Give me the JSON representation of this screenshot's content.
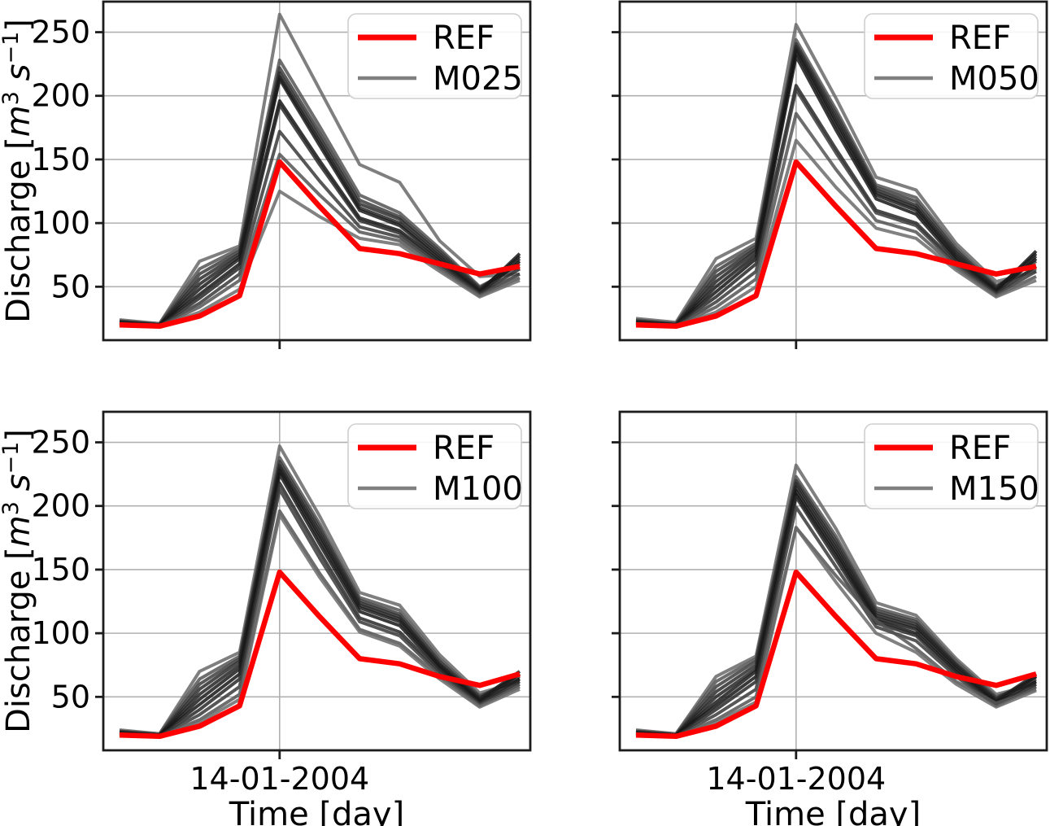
{
  "figure": {
    "background": "#ffffff",
    "colors": {
      "ref": "#ff0000",
      "member_legend": "#808080",
      "member_dark": "#161616",
      "member_light": "#6b6b6b",
      "grid": "#b0b0b0",
      "spine": "#1c1c1c",
      "legend_border": "#cfcfcf",
      "text": "#000000"
    }
  },
  "chart_data": {
    "type": "line",
    "title": "",
    "xlabel": "Time [day]",
    "ylabel": "Discharge [m³ s⁻¹]",
    "ylabel_segments": [
      {
        "text": "Discharge ["
      },
      {
        "text": "m",
        "italic": true
      },
      {
        "text": "3",
        "super": true
      },
      {
        "text": " "
      },
      {
        "text": "s",
        "italic": true
      },
      {
        "text": "−1",
        "super": true
      },
      {
        "text": "]"
      }
    ],
    "x_tick_label": "14-01-2004",
    "x_tick_index": 4,
    "n_points": 11,
    "yticks": [
      50,
      100,
      150,
      200,
      250
    ],
    "ylim": [
      8,
      274
    ],
    "grid": true,
    "legend_position": "upper right",
    "subplots": [
      {
        "name": "M025",
        "row": 0,
        "col": 0,
        "legend": [
          "REF",
          "M025"
        ],
        "ref": [
          20,
          19,
          27,
          43,
          148,
          113,
          80,
          76,
          68,
          60,
          66
        ],
        "members": [
          [
            24,
            21,
            70,
            82,
            264,
            205,
            146,
            132,
            86,
            58,
            60
          ],
          [
            23,
            21,
            64,
            80,
            228,
            176,
            122,
            108,
            80,
            50,
            66
          ],
          [
            23,
            20,
            60,
            78,
            222,
            171,
            118,
            105,
            78,
            49,
            68
          ],
          [
            22,
            20,
            56,
            76,
            218,
            167,
            115,
            103,
            76,
            48,
            72
          ],
          [
            22,
            20,
            52,
            74,
            215,
            164,
            112,
            100,
            74,
            47,
            74
          ],
          [
            22,
            20,
            48,
            72,
            213,
            161,
            110,
            98,
            72,
            46,
            76
          ],
          [
            21,
            20,
            44,
            68,
            196,
            149,
            104,
            94,
            70,
            45,
            70
          ],
          [
            21,
            19,
            41,
            65,
            193,
            146,
            102,
            92,
            68,
            45,
            64
          ],
          [
            21,
            19,
            37,
            60,
            172,
            133,
            97,
            89,
            66,
            44,
            60
          ],
          [
            21,
            19,
            34,
            55,
            154,
            122,
            93,
            86,
            64,
            43,
            57
          ],
          [
            20,
            19,
            30,
            48,
            125,
            105,
            88,
            83,
            62,
            42,
            55
          ]
        ]
      },
      {
        "name": "M050",
        "row": 0,
        "col": 1,
        "legend": [
          "REF",
          "M050"
        ],
        "ref": [
          20,
          19,
          27,
          43,
          148,
          113,
          80,
          76,
          68,
          60,
          66
        ],
        "members": [
          [
            25,
            22,
            72,
            88,
            256,
            198,
            136,
            126,
            84,
            54,
            62
          ],
          [
            24,
            21,
            66,
            84,
            244,
            189,
            130,
            120,
            81,
            51,
            64
          ],
          [
            23,
            21,
            62,
            82,
            241,
            186,
            128,
            117,
            79,
            50,
            70
          ],
          [
            23,
            20,
            58,
            80,
            239,
            183,
            126,
            114,
            77,
            49,
            74
          ],
          [
            22,
            20,
            54,
            78,
            237,
            180,
            124,
            112,
            75,
            48,
            76
          ],
          [
            22,
            20,
            50,
            75,
            235,
            177,
            122,
            110,
            73,
            47,
            78
          ],
          [
            22,
            20,
            46,
            72,
            231,
            173,
            119,
            107,
            71,
            46,
            72
          ],
          [
            21,
            20,
            42,
            68,
            208,
            158,
            110,
            100,
            69,
            45,
            66
          ],
          [
            21,
            19,
            38,
            62,
            205,
            155,
            108,
            98,
            67,
            44,
            62
          ],
          [
            21,
            19,
            34,
            56,
            186,
            142,
            102,
            93,
            65,
            43,
            58
          ],
          [
            20,
            19,
            30,
            50,
            165,
            128,
            96,
            88,
            63,
            42,
            55
          ]
        ]
      },
      {
        "name": "M100",
        "row": 1,
        "col": 0,
        "legend": [
          "REF",
          "M100"
        ],
        "ref": [
          20,
          19,
          27,
          43,
          148,
          113,
          80,
          76,
          66,
          59,
          68
        ],
        "members": [
          [
            24,
            21,
            70,
            85,
            247,
            192,
            132,
            122,
            83,
            53,
            62
          ],
          [
            23,
            21,
            64,
            82,
            238,
            186,
            128,
            118,
            80,
            51,
            64
          ],
          [
            23,
            20,
            60,
            80,
            235,
            183,
            126,
            115,
            78,
            50,
            66
          ],
          [
            22,
            20,
            56,
            78,
            232,
            180,
            124,
            113,
            76,
            49,
            68
          ],
          [
            22,
            20,
            52,
            75,
            230,
            177,
            122,
            111,
            75,
            48,
            70
          ],
          [
            22,
            20,
            48,
            72,
            228,
            174,
            120,
            109,
            74,
            47,
            68
          ],
          [
            21,
            20,
            44,
            68,
            225,
            170,
            117,
            106,
            72,
            46,
            64
          ],
          [
            21,
            19,
            40,
            64,
            218,
            164,
            112,
            101,
            70,
            45,
            62
          ],
          [
            21,
            19,
            36,
            58,
            213,
            159,
            109,
            98,
            68,
            44,
            60
          ],
          [
            20,
            19,
            32,
            52,
            196,
            147,
            103,
            92,
            66,
            43,
            58
          ],
          [
            20,
            19,
            30,
            48,
            193,
            144,
            101,
            90,
            64,
            42,
            56
          ]
        ]
      },
      {
        "name": "M150",
        "row": 1,
        "col": 1,
        "legend": [
          "REF",
          "M150"
        ],
        "ref": [
          20,
          19,
          27,
          43,
          148,
          113,
          80,
          76,
          66,
          59,
          68
        ],
        "members": [
          [
            24,
            21,
            66,
            82,
            232,
            182,
            124,
            114,
            80,
            52,
            60
          ],
          [
            23,
            21,
            62,
            80,
            223,
            176,
            120,
            111,
            78,
            50,
            62
          ],
          [
            23,
            20,
            58,
            78,
            220,
            173,
            118,
            109,
            76,
            49,
            64
          ],
          [
            22,
            20,
            54,
            75,
            218,
            170,
            116,
            107,
            75,
            48,
            66
          ],
          [
            22,
            20,
            50,
            72,
            215,
            167,
            114,
            105,
            74,
            47,
            68
          ],
          [
            22,
            20,
            46,
            70,
            212,
            164,
            112,
            103,
            72,
            46,
            66
          ],
          [
            21,
            20,
            43,
            66,
            209,
            161,
            110,
            100,
            70,
            45,
            62
          ],
          [
            21,
            19,
            40,
            62,
            207,
            158,
            108,
            98,
            68,
            44,
            60
          ],
          [
            21,
            19,
            36,
            56,
            199,
            152,
            105,
            94,
            66,
            43,
            58
          ],
          [
            20,
            19,
            32,
            50,
            183,
            145,
            110,
            88,
            62,
            45,
            56
          ],
          [
            20,
            19,
            30,
            46,
            183,
            140,
            100,
            85,
            60,
            42,
            55
          ]
        ]
      }
    ]
  }
}
